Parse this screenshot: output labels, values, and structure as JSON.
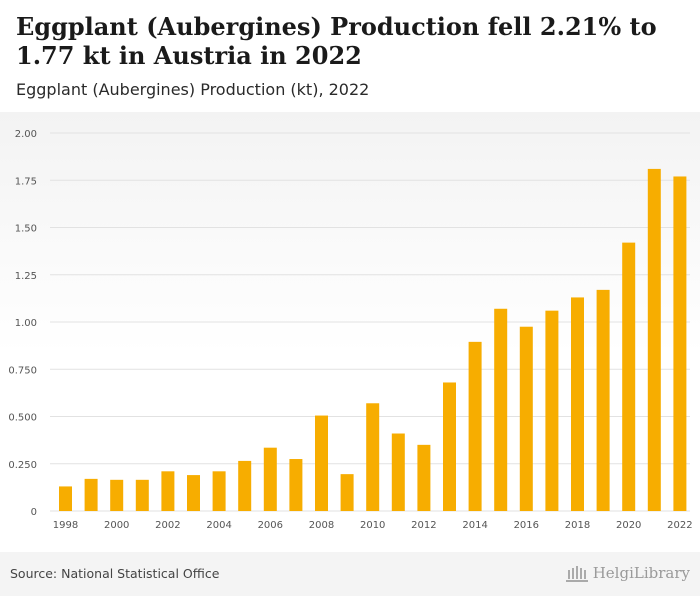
{
  "header": {
    "title": "Eggplant (Aubergines) Production fell 2.21% to 1.77 kt in Austria in 2022",
    "subtitle": "Eggplant (Aubergines) Production (kt), 2022"
  },
  "footer": {
    "source": "Source: National Statistical Office",
    "logo_text": "HelgiLibrary"
  },
  "colors": {
    "bar": "#f7ad00",
    "grid": "#e2e2e2",
    "axis_text": "#555555"
  },
  "chart_data": {
    "type": "bar",
    "categories": [
      "1998",
      "1999",
      "2000",
      "2001",
      "2002",
      "2003",
      "2004",
      "2005",
      "2006",
      "2007",
      "2008",
      "2009",
      "2010",
      "2011",
      "2012",
      "2013",
      "2014",
      "2015",
      "2016",
      "2017",
      "2018",
      "2019",
      "2020",
      "2021",
      "2022"
    ],
    "values": [
      0.13,
      0.17,
      0.165,
      0.165,
      0.21,
      0.19,
      0.21,
      0.265,
      0.335,
      0.275,
      0.505,
      0.195,
      0.57,
      0.41,
      0.35,
      0.68,
      0.895,
      1.07,
      0.975,
      1.06,
      1.13,
      1.17,
      1.42,
      1.81,
      1.77
    ],
    "x_tick_labels": [
      "1998",
      "2000",
      "2002",
      "2004",
      "2006",
      "2008",
      "2010",
      "2012",
      "2014",
      "2016",
      "2018",
      "2020",
      "2022"
    ],
    "y_ticks": [
      "0",
      "0.250",
      "0.500",
      "0.750",
      "1.00",
      "1.25",
      "1.50",
      "1.75",
      "2.00"
    ],
    "y_tick_values": [
      0,
      0.25,
      0.5,
      0.75,
      1.0,
      1.25,
      1.5,
      1.75,
      2.0
    ],
    "ylim": [
      0,
      2.0
    ],
    "grid": true,
    "legend": "none"
  }
}
